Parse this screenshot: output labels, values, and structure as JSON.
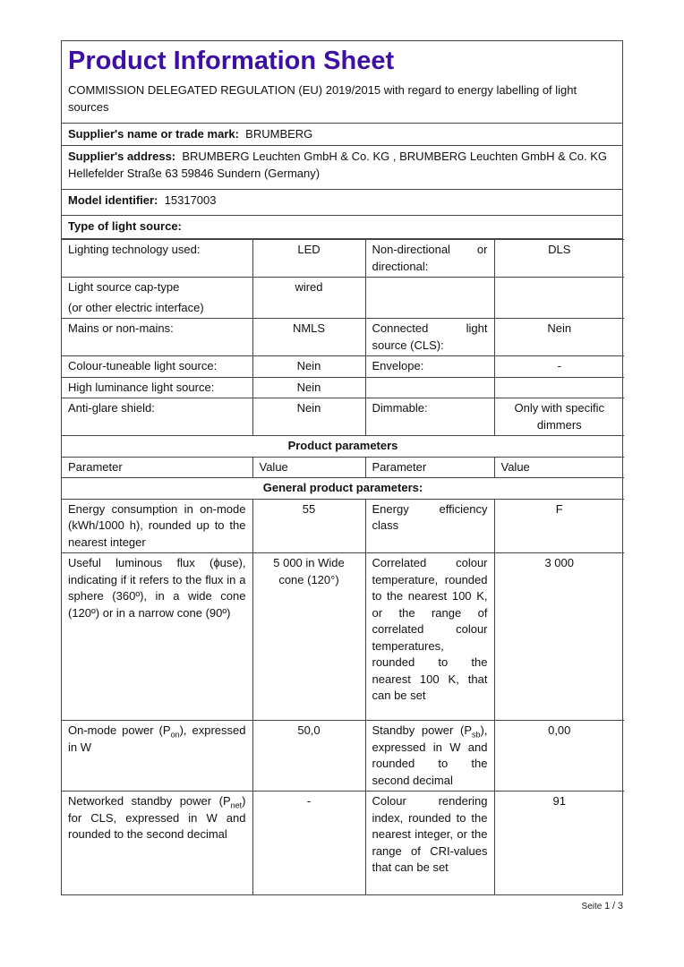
{
  "title": "Product Information Sheet",
  "regulation": "COMMISSION DELEGATED REGULATION (EU) 2019/2015 with regard to energy labelling of light sources",
  "supplier_name": {
    "label": "Supplier's name or trade mark:",
    "value": "BRUMBERG"
  },
  "supplier_address": {
    "label": "Supplier's address:",
    "value": "BRUMBERG Leuchten GmbH & Co. KG , BRUMBERG Leuchten GmbH & Co. KG Hellefelder Straße 63 59846 Sundern (Germany)"
  },
  "model_identifier": {
    "label": "Model identifier:",
    "value": "15317003"
  },
  "type_heading": "Type of light source:",
  "type_rows": [
    [
      "Lighting technology used:",
      "LED",
      "Non-directional or directional:",
      "DLS"
    ],
    [
      "Light source cap-type\n(or other electric interface)",
      "wired",
      "",
      ""
    ],
    [
      "Mains or non-mains:",
      "NMLS",
      "Connected light source (CLS):",
      "Nein"
    ],
    [
      "Colour-tuneable light source:",
      "Nein",
      "Envelope:",
      "-"
    ],
    [
      "High luminance light source:",
      "Nein",
      "",
      ""
    ],
    [
      "Anti-glare shield:",
      "Nein",
      "Dimmable:",
      "Only with specific dimmers"
    ]
  ],
  "product_parameters_heading": "Product parameters",
  "param_header": [
    "Parameter",
    "Value",
    "Parameter",
    "Value"
  ],
  "general_heading": "General product parameters:",
  "param_rows": [
    [
      [
        "Energy consumption in on-mode (kWh/1000 h), rounded up to the nearest integer"
      ],
      [
        "55"
      ],
      [
        "Energy efficiency class"
      ],
      [
        "F"
      ]
    ],
    [
      [
        "Useful luminous flux (ϕuse), indicating if it refers to the flux in a sphere (360º), in a wide cone (120º) or in a narrow cone (90º)"
      ],
      [
        "5 000 in Wide cone (120°)"
      ],
      [
        "Correlated colour temperature, rounded to the nearest 100 K, or the range of correlated colour temperatures, rounded to the nearest 100 K, that can be set"
      ],
      [
        "3 000"
      ]
    ],
    [
      [
        "On-mode power (P",
        "on",
        "), expressed in W"
      ],
      [
        "50,0"
      ],
      [
        "Standby power (P",
        "sb",
        "), expressed in W and rounded to the second decimal"
      ],
      [
        "0,00"
      ]
    ],
    [
      [
        "Networked standby power (P",
        "net",
        ") for CLS, expressed in W and rounded to the second decimal"
      ],
      [
        "-"
      ],
      [
        "Colour rendering index, rounded to the nearest integer, or the range of CRI-values that can be set"
      ],
      [
        "91"
      ]
    ]
  ],
  "footer": {
    "label": "Seite",
    "page": "1",
    "sep": "/",
    "total": "3"
  },
  "colors": {
    "title": "#3d0fa5",
    "border": "#444444"
  }
}
